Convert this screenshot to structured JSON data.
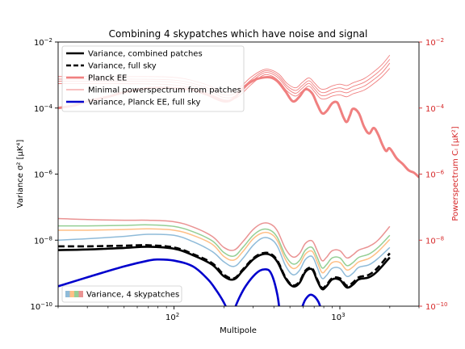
{
  "chart_data": {
    "type": "line",
    "title": "Combining 4 skypatches which have noise and signal",
    "xlabel": "Multipole",
    "ylabel_left": "Variance σ² [μK⁴]",
    "ylabel_right": "Powerspectrum Cₗ [μK²]",
    "x_scale": "log",
    "y_scale_left": "log",
    "y_scale_right": "log",
    "xlim": [
      20,
      3000
    ],
    "ylim_left": [
      1e-10,
      0.01
    ],
    "ylim_right": [
      1e-10,
      0.01
    ],
    "x_ticks": [
      {
        "value": 100,
        "base": "10",
        "exp": "2"
      },
      {
        "value": 1000,
        "base": "10",
        "exp": "3"
      }
    ],
    "y_ticks": [
      {
        "value": 1e-10,
        "base": "10",
        "exp": "−10"
      },
      {
        "value": 1e-08,
        "base": "10",
        "exp": "−8"
      },
      {
        "value": 1e-06,
        "base": "10",
        "exp": "−6"
      },
      {
        "value": 0.0001,
        "base": "10",
        "exp": "−4"
      },
      {
        "value": 0.01,
        "base": "10",
        "exp": "−2"
      }
    ],
    "right_axis_color": "#d62728",
    "grid": false,
    "legend_upper": {
      "placement": "upper-left",
      "entries": [
        {
          "label": "Variance, combined patches",
          "color": "#000000",
          "style": "solid-thick"
        },
        {
          "label": "Variance, full sky",
          "color": "#000000",
          "style": "dashed-thick"
        },
        {
          "label": "Planck EE",
          "color": "#f08080",
          "style": "solid-thick"
        },
        {
          "label": "Minimal powerspectrum from patches",
          "color": "#f08080",
          "style": "solid-thin"
        },
        {
          "label": "Variance, Planck EE, full sky",
          "color": "#0000cd",
          "style": "solid-thick"
        }
      ]
    },
    "legend_lower": {
      "placement": "lower-left",
      "entries": [
        {
          "label": "Variance, 4 skypatches",
          "colors": [
            "#1f77b4",
            "#ff7f0e",
            "#2ca02c",
            "#d62728"
          ]
        }
      ]
    },
    "series": [
      {
        "label": "Variance, combined patches",
        "axis": "left",
        "color": "#000000",
        "width": 2.6,
        "dash": "",
        "x": [
          20,
          30,
          50,
          70,
          100,
          130,
          170,
          200,
          230,
          260,
          300,
          340,
          380,
          420,
          470,
          520,
          570,
          620,
          680,
          730,
          780,
          830,
          900,
          1000,
          1100,
          1200,
          1300,
          1500,
          1700,
          2000
        ],
        "y": [
          5e-09,
          5.2e-09,
          5.8e-09,
          6.3e-09,
          5.5e-09,
          3.5e-09,
          1.8e-09,
          8e-10,
          6.5e-10,
          1.2e-09,
          2.6e-09,
          3.7e-09,
          3.6e-09,
          2.2e-09,
          7e-10,
          4e-10,
          5e-10,
          1.1e-09,
          1.3e-09,
          6e-10,
          3.3e-10,
          4e-10,
          6.5e-10,
          6.3e-10,
          3.7e-10,
          4.5e-10,
          6.5e-10,
          7.5e-10,
          1.2e-09,
          3e-09
        ]
      },
      {
        "label": "Variance, full sky",
        "axis": "left",
        "color": "#000000",
        "width": 2.6,
        "dash": "8,4",
        "x": [
          20,
          30,
          50,
          70,
          100,
          130,
          170,
          200,
          230,
          260,
          300,
          340,
          380,
          420,
          470,
          520,
          570,
          620,
          680,
          730,
          780,
          830,
          900,
          1000,
          1100,
          1200,
          1300,
          1500,
          1700,
          2000
        ],
        "y": [
          6.5e-09,
          6.5e-09,
          6.8e-09,
          7e-09,
          6e-09,
          3.8e-09,
          2e-09,
          9e-10,
          7e-10,
          1.3e-09,
          2.8e-09,
          4e-09,
          3.9e-09,
          2.4e-09,
          7.5e-10,
          4.3e-10,
          5.5e-10,
          1.2e-09,
          1.4e-09,
          6.5e-10,
          3.6e-10,
          4.4e-10,
          7e-10,
          7e-10,
          4.2e-10,
          5.2e-10,
          7.5e-10,
          9e-10,
          1.5e-09,
          4e-09
        ]
      },
      {
        "label": "Planck EE",
        "axis": "right",
        "color": "#f08080",
        "width": 3,
        "dash": "",
        "x": [
          20,
          25,
          30,
          40,
          50,
          70,
          100,
          130,
          160,
          200,
          230,
          260,
          300,
          340,
          380,
          420,
          470,
          520,
          570,
          620,
          680,
          730,
          780,
          830,
          900,
          960,
          1000,
          1050,
          1100,
          1150,
          1200,
          1300,
          1400,
          1500,
          1600,
          1700,
          1800,
          1900,
          2000,
          2200,
          2400,
          2600,
          2800,
          3000
        ],
        "y": [
          0.0001,
          0.00012,
          0.00016,
          0.00022,
          0.0003,
          0.0004,
          0.0004,
          0.00035,
          0.00025,
          0.00016,
          0.0002,
          0.0004,
          0.00068,
          0.00083,
          0.00085,
          0.00065,
          0.00032,
          0.00016,
          0.00022,
          0.00037,
          0.00028,
          0.00013,
          7e-05,
          8e-05,
          0.00014,
          0.00015,
          0.0001,
          5.3e-05,
          3.8e-05,
          6e-05,
          9.5e-05,
          7e-05,
          2.7e-05,
          1.7e-05,
          2.5e-05,
          1.6e-05,
          8e-06,
          5e-06,
          6e-06,
          3e-06,
          2e-06,
          1.3e-06,
          1.1e-06,
          8e-07
        ]
      },
      {
        "label": "Minimal powerspectrum from patches",
        "axis": "right",
        "color": "#f08080",
        "width": 0.9,
        "dash": "",
        "x": [
          20,
          50,
          100,
          150,
          200,
          240,
          290,
          340,
          380,
          430,
          480,
          540,
          590,
          650,
          700,
          760,
          820,
          900,
          1000,
          1100,
          1200,
          1400,
          1600,
          1800,
          2000
        ],
        "y": [
          0.00055,
          0.00055,
          0.0005,
          0.00032,
          0.00018,
          0.00021,
          0.0005,
          0.00095,
          0.00098,
          0.00065,
          0.00033,
          0.00023,
          0.00032,
          0.00046,
          0.00032,
          0.0002,
          0.00019,
          0.00023,
          0.00025,
          0.00022,
          0.00027,
          0.00035,
          0.00055,
          0.0009,
          0.0016
        ]
      },
      {
        "label": "Minimal powerspectrum from patches",
        "axis": "right",
        "color": "#f08080",
        "width": 0.9,
        "dash": "",
        "x": [
          20,
          50,
          100,
          150,
          200,
          240,
          290,
          340,
          380,
          430,
          480,
          540,
          590,
          650,
          700,
          760,
          820,
          900,
          1000,
          1100,
          1200,
          1400,
          1600,
          1800,
          2000
        ],
        "y": [
          0.00065,
          0.00065,
          0.0006,
          0.00038,
          0.00021,
          0.00025,
          0.0006,
          0.0011,
          0.00115,
          0.00078,
          0.0004,
          0.00028,
          0.00039,
          0.00056,
          0.00039,
          0.00025,
          0.00024,
          0.00029,
          0.00032,
          0.00029,
          0.00035,
          0.00046,
          0.00073,
          0.0012,
          0.0023
        ]
      },
      {
        "label": "Minimal powerspectrum from patches",
        "axis": "right",
        "color": "#f08080",
        "width": 0.9,
        "dash": "",
        "x": [
          20,
          50,
          100,
          150,
          200,
          240,
          290,
          340,
          380,
          430,
          480,
          540,
          590,
          650,
          700,
          760,
          820,
          900,
          1000,
          1100,
          1200,
          1400,
          1600,
          1800,
          2000
        ],
        "y": [
          0.00075,
          0.00075,
          0.0007,
          0.00045,
          0.00025,
          0.0003,
          0.0007,
          0.00125,
          0.0013,
          0.0009,
          0.00047,
          0.00034,
          0.00047,
          0.00067,
          0.00048,
          0.00031,
          0.0003,
          0.00037,
          0.00041,
          0.00037,
          0.00045,
          0.0006,
          0.00095,
          0.0016,
          0.003
        ]
      },
      {
        "label": "Minimal powerspectrum from patches",
        "axis": "right",
        "color": "#f08080",
        "width": 0.9,
        "dash": "",
        "x": [
          20,
          50,
          100,
          150,
          200,
          240,
          290,
          340,
          380,
          430,
          480,
          540,
          590,
          650,
          700,
          760,
          820,
          900,
          1000,
          1100,
          1200,
          1400,
          1600,
          1800,
          2000
        ],
        "y": [
          0.0009,
          0.0009,
          0.00085,
          0.00055,
          0.00031,
          0.00037,
          0.00085,
          0.0014,
          0.00145,
          0.00105,
          0.00056,
          0.00041,
          0.00058,
          0.00082,
          0.00059,
          0.00039,
          0.00038,
          0.00047,
          0.00053,
          0.00048,
          0.00058,
          0.00078,
          0.00125,
          0.0021,
          0.004
        ]
      },
      {
        "label": "Variance, Planck EE, full sky",
        "axis": "left",
        "color": "#0000cd",
        "width": 2.6,
        "dash": "",
        "x": [
          20,
          30,
          50,
          70,
          80,
          100,
          130,
          160,
          180,
          195,
          205
        ],
        "y": [
          4e-10,
          7.5e-10,
          1.6e-09,
          2.4e-09,
          2.6e-09,
          2.4e-09,
          1.6e-09,
          6.5e-10,
          3e-10,
          1.6e-10,
          1e-10
        ]
      },
      {
        "label": "Variance, Planck EE, full sky",
        "axis": "left",
        "color": "#0000cd",
        "width": 2.6,
        "dash": "",
        "x": [
          235,
          250,
          270,
          300,
          330,
          360,
          380,
          400,
          420,
          430
        ],
        "y": [
          1e-10,
          2e-10,
          4e-10,
          8e-10,
          1.2e-09,
          1.3e-09,
          1.1e-09,
          6e-10,
          2.2e-10,
          1e-10
        ]
      },
      {
        "label": "Variance, Planck EE, full sky",
        "axis": "left",
        "color": "#0000cd",
        "width": 2.6,
        "dash": "",
        "x": [
          595,
          620,
          660,
          700,
          740,
          760
        ],
        "y": [
          1e-10,
          1.6e-10,
          2.2e-10,
          2e-10,
          1.4e-10,
          1e-10
        ]
      },
      {
        "label": "Variance, 4 skypatches",
        "axis": "left",
        "color": "#1f77b4",
        "width": 1.5,
        "dash": "",
        "alpha": 0.5,
        "x": [
          20,
          30,
          50,
          70,
          100,
          130,
          170,
          200,
          230,
          260,
          300,
          340,
          380,
          420,
          470,
          520,
          570,
          620,
          680,
          730,
          780,
          830,
          900,
          1000,
          1100,
          1200,
          1300,
          1500,
          1700,
          2000
        ],
        "y": [
          1e-08,
          1.1e-08,
          1.3e-08,
          1.5e-08,
          1.4e-08,
          9e-09,
          4.5e-09,
          2.2e-09,
          1.6e-09,
          2.8e-09,
          7e-09,
          1.15e-08,
          1.1e-08,
          6.5e-09,
          1.7e-09,
          9e-10,
          1.2e-09,
          2.6e-09,
          3.2e-09,
          1.5e-09,
          7e-10,
          8.5e-10,
          1.4e-09,
          1.4e-09,
          8e-10,
          1e-09,
          1.5e-09,
          1.8e-09,
          2.8e-09,
          6e-09
        ]
      },
      {
        "label": "Variance, 4 skypatches",
        "axis": "left",
        "color": "#ff7f0e",
        "width": 1.5,
        "dash": "",
        "alpha": 0.5,
        "x": [
          20,
          30,
          50,
          70,
          100,
          130,
          170,
          200,
          230,
          260,
          300,
          340,
          380,
          420,
          470,
          520,
          570,
          620,
          680,
          730,
          780,
          830,
          900,
          1000,
          1100,
          1200,
          1300,
          1500,
          1700,
          2000
        ],
        "y": [
          2e-08,
          2e-08,
          2.1e-08,
          2.2e-08,
          2e-08,
          1.4e-08,
          7.5e-09,
          3.2e-09,
          2.5e-09,
          4.5e-09,
          1.1e-08,
          1.65e-08,
          1.6e-08,
          9.5e-09,
          2.6e-09,
          1.4e-09,
          1.8e-09,
          3.8e-09,
          4.6e-09,
          2.2e-09,
          1.05e-09,
          1.3e-09,
          2.1e-09,
          2.1e-09,
          1.25e-09,
          1.55e-09,
          2.2e-09,
          2.8e-09,
          4.5e-09,
          1.05e-08
        ]
      },
      {
        "label": "Variance, 4 skypatches",
        "axis": "left",
        "color": "#2ca02c",
        "width": 1.5,
        "dash": "",
        "alpha": 0.5,
        "x": [
          20,
          30,
          50,
          70,
          100,
          130,
          170,
          200,
          230,
          260,
          300,
          340,
          380,
          420,
          470,
          520,
          570,
          620,
          680,
          730,
          780,
          830,
          900,
          1000,
          1100,
          1200,
          1300,
          1500,
          1700,
          2000
        ],
        "y": [
          2.7e-08,
          2.7e-08,
          2.8e-08,
          2.9e-08,
          2.6e-08,
          1.8e-08,
          9.5e-09,
          4.2e-09,
          3.3e-09,
          6e-09,
          1.4e-08,
          2.1e-08,
          2e-08,
          1.2e-08,
          3.4e-09,
          1.9e-09,
          2.4e-09,
          5e-09,
          6e-09,
          3e-09,
          1.45e-09,
          1.8e-09,
          2.9e-09,
          2.9e-09,
          1.7e-09,
          2.1e-09,
          3e-09,
          3.8e-09,
          6e-09,
          1.4e-08
        ]
      },
      {
        "label": "Variance, 4 skypatches",
        "axis": "left",
        "color": "#d62728",
        "width": 1.5,
        "dash": "",
        "alpha": 0.5,
        "x": [
          20,
          30,
          50,
          70,
          100,
          130,
          170,
          200,
          230,
          260,
          300,
          340,
          380,
          420,
          470,
          520,
          570,
          620,
          680,
          730,
          780,
          830,
          900,
          1000,
          1100,
          1200,
          1300,
          1500,
          1700,
          2000
        ],
        "y": [
          4.5e-08,
          4.2e-08,
          4e-08,
          4e-08,
          3.6e-08,
          2.5e-08,
          1.3e-08,
          6e-09,
          5e-09,
          9e-09,
          2.1e-08,
          3.2e-08,
          3.1e-08,
          1.9e-08,
          5.5e-09,
          3.1e-09,
          3.9e-09,
          8e-09,
          9.5e-09,
          4.8e-09,
          2.4e-09,
          3e-09,
          4.8e-09,
          4.8e-09,
          2.9e-09,
          3.6e-09,
          5e-09,
          6.5e-09,
          1e-08,
          2.6e-08
        ]
      }
    ]
  }
}
